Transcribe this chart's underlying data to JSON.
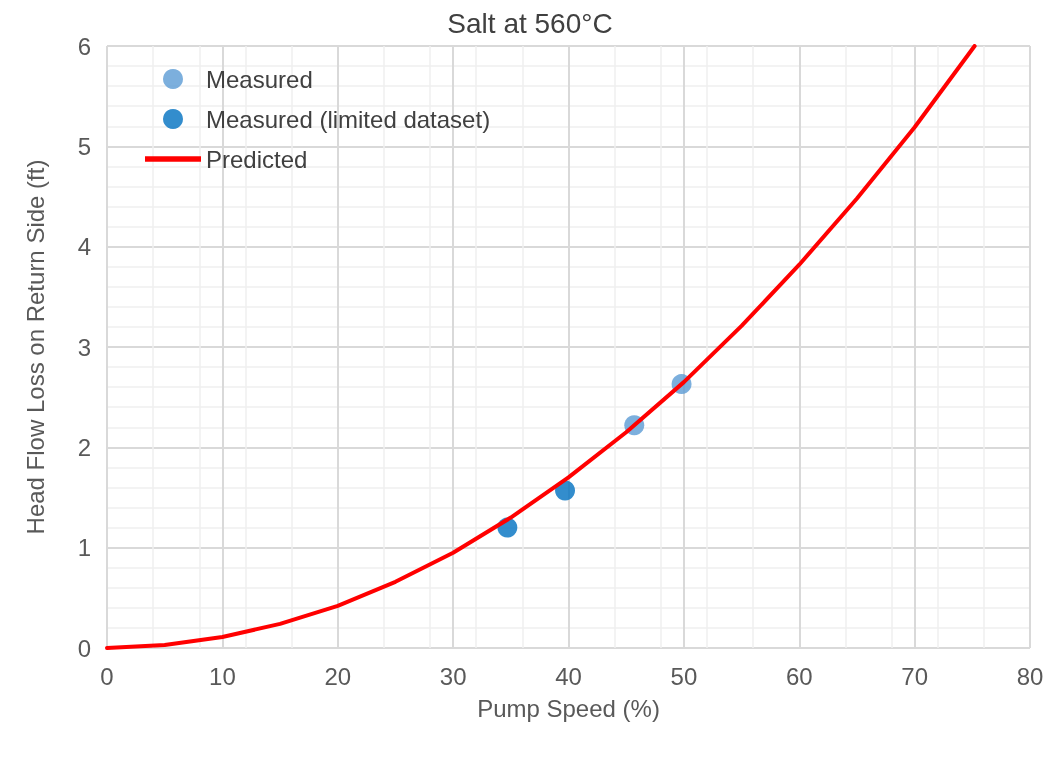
{
  "chart_data": {
    "type": "scatter",
    "title": "Salt at 560°C",
    "xlabel": "Pump Speed (%)",
    "ylabel": "Head Flow Loss on Return Side (ft)",
    "xlim": [
      0,
      80
    ],
    "xticks": [
      0,
      10,
      20,
      30,
      40,
      50,
      60,
      70,
      80
    ],
    "ylim": [
      0,
      6
    ],
    "yticks": [
      0,
      1,
      2,
      3,
      4,
      5,
      6
    ],
    "grid": true,
    "legend": "top left",
    "marker": "circle",
    "series": [
      {
        "name": "Measured",
        "color": "#5b9bd5",
        "x": [
          45.7,
          49.8
        ],
        "values": [
          2.22,
          2.63
        ]
      },
      {
        "name": "Measured (limited dataset)",
        "color": "#0070c0",
        "x": [
          34.7,
          39.7
        ],
        "values": [
          1.2,
          1.57
        ]
      },
      {
        "name": "Predicted",
        "type": "line",
        "color": "#ff0000",
        "marker": "none",
        "line_style": "solid",
        "x": [
          0,
          5,
          10,
          15,
          20,
          25,
          30,
          35,
          40,
          45,
          50,
          55,
          60,
          65,
          70,
          75.2
        ],
        "values": [
          0,
          0.03,
          0.11,
          0.24,
          0.42,
          0.66,
          0.95,
          1.3,
          1.7,
          2.15,
          2.65,
          3.21,
          3.82,
          4.48,
          5.19,
          6
        ]
      }
    ]
  }
}
